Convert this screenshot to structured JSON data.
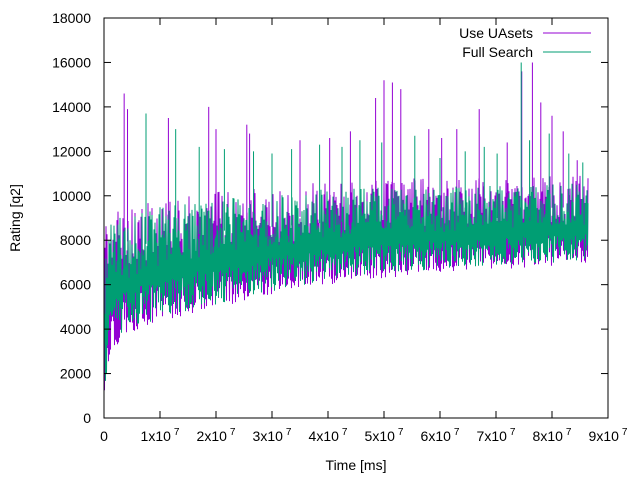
{
  "chart_data": {
    "type": "line",
    "xlabel": "Time [ms]",
    "ylabel": "Rating [q2]",
    "xlim": [
      0,
      90000000
    ],
    "ylim": [
      0,
      18000
    ],
    "x_ticks": [
      {
        "value": 0,
        "mantissa": "0",
        "exp": ""
      },
      {
        "value": 10000000,
        "mantissa": "1x10",
        "exp": "7"
      },
      {
        "value": 20000000,
        "mantissa": "2x10",
        "exp": "7"
      },
      {
        "value": 30000000,
        "mantissa": "3x10",
        "exp": "7"
      },
      {
        "value": 40000000,
        "mantissa": "4x10",
        "exp": "7"
      },
      {
        "value": 50000000,
        "mantissa": "5x10",
        "exp": "7"
      },
      {
        "value": 60000000,
        "mantissa": "6x10",
        "exp": "7"
      },
      {
        "value": 70000000,
        "mantissa": "7x10",
        "exp": "7"
      },
      {
        "value": 80000000,
        "mantissa": "8x10",
        "exp": "7"
      },
      {
        "value": 90000000,
        "mantissa": "9x10",
        "exp": "7"
      }
    ],
    "y_ticks": [
      0,
      2000,
      4000,
      6000,
      8000,
      10000,
      12000,
      14000,
      16000,
      18000
    ],
    "grid": false,
    "legend_position": "top-right",
    "series": [
      {
        "name": "Use UAsets",
        "color": "#9400d3",
        "x_end": 86500000,
        "band_low": [
          [
            0,
            900
          ],
          [
            1000000,
            2500
          ],
          [
            3000000,
            3600
          ],
          [
            10000000,
            4300
          ],
          [
            20000000,
            4900
          ],
          [
            30000000,
            5500
          ],
          [
            40000000,
            6000
          ],
          [
            50000000,
            6300
          ],
          [
            60000000,
            6500
          ],
          [
            70000000,
            6700
          ],
          [
            86500000,
            6800
          ]
        ],
        "band_high": [
          [
            0,
            8500
          ],
          [
            1000000,
            9200
          ],
          [
            10000000,
            9900
          ],
          [
            20000000,
            10200
          ],
          [
            30000000,
            10400
          ],
          [
            40000000,
            10700
          ],
          [
            50000000,
            10800
          ],
          [
            60000000,
            10800
          ],
          [
            70000000,
            10900
          ],
          [
            86500000,
            11000
          ]
        ],
        "spikes": [
          [
            3600000,
            14600
          ],
          [
            4200000,
            13900
          ],
          [
            11500000,
            13500
          ],
          [
            18700000,
            14000
          ],
          [
            20000000,
            13000
          ],
          [
            25500000,
            13200
          ],
          [
            26000000,
            12800
          ],
          [
            35000000,
            12500
          ],
          [
            40300000,
            12600
          ],
          [
            44000000,
            12900
          ],
          [
            48500000,
            14400
          ],
          [
            50000000,
            15200
          ],
          [
            51500000,
            15100
          ],
          [
            53000000,
            14800
          ],
          [
            58000000,
            13000
          ],
          [
            60300000,
            12600
          ],
          [
            63000000,
            13000
          ],
          [
            67000000,
            13900
          ],
          [
            72000000,
            12400
          ],
          [
            74600000,
            15600
          ],
          [
            76500000,
            16000
          ],
          [
            78000000,
            14200
          ],
          [
            80000000,
            13600
          ],
          [
            82000000,
            12900
          ],
          [
            84500000,
            11600
          ]
        ]
      },
      {
        "name": "Full Search",
        "color": "#009e73",
        "x_end": 86500000,
        "band_low": [
          [
            0,
            900
          ],
          [
            1000000,
            2800
          ],
          [
            3000000,
            3800
          ],
          [
            10000000,
            4500
          ],
          [
            20000000,
            5100
          ],
          [
            30000000,
            5700
          ],
          [
            40000000,
            6200
          ],
          [
            50000000,
            6500
          ],
          [
            60000000,
            6700
          ],
          [
            70000000,
            6900
          ],
          [
            86500000,
            7000
          ]
        ],
        "band_high": [
          [
            0,
            8200
          ],
          [
            1000000,
            8900
          ],
          [
            10000000,
            9500
          ],
          [
            20000000,
            9900
          ],
          [
            30000000,
            10100
          ],
          [
            40000000,
            10300
          ],
          [
            50000000,
            10400
          ],
          [
            60000000,
            10400
          ],
          [
            70000000,
            10500
          ],
          [
            86500000,
            10600
          ]
        ],
        "spikes": [
          [
            7500000,
            13700
          ],
          [
            12800000,
            13000
          ],
          [
            17000000,
            12200
          ],
          [
            21500000,
            12100
          ],
          [
            26700000,
            12000
          ],
          [
            30000000,
            11900
          ],
          [
            33500000,
            12100
          ],
          [
            38500000,
            12300
          ],
          [
            42500000,
            12200
          ],
          [
            45700000,
            12500
          ],
          [
            49600000,
            12400
          ],
          [
            55500000,
            12700
          ],
          [
            60000000,
            11700
          ],
          [
            64500000,
            12000
          ],
          [
            67900000,
            12200
          ],
          [
            70200000,
            11900
          ],
          [
            74500000,
            16000
          ],
          [
            76000000,
            12500
          ],
          [
            79500000,
            12800
          ],
          [
            83000000,
            11900
          ],
          [
            85500000,
            11500
          ]
        ]
      }
    ]
  }
}
